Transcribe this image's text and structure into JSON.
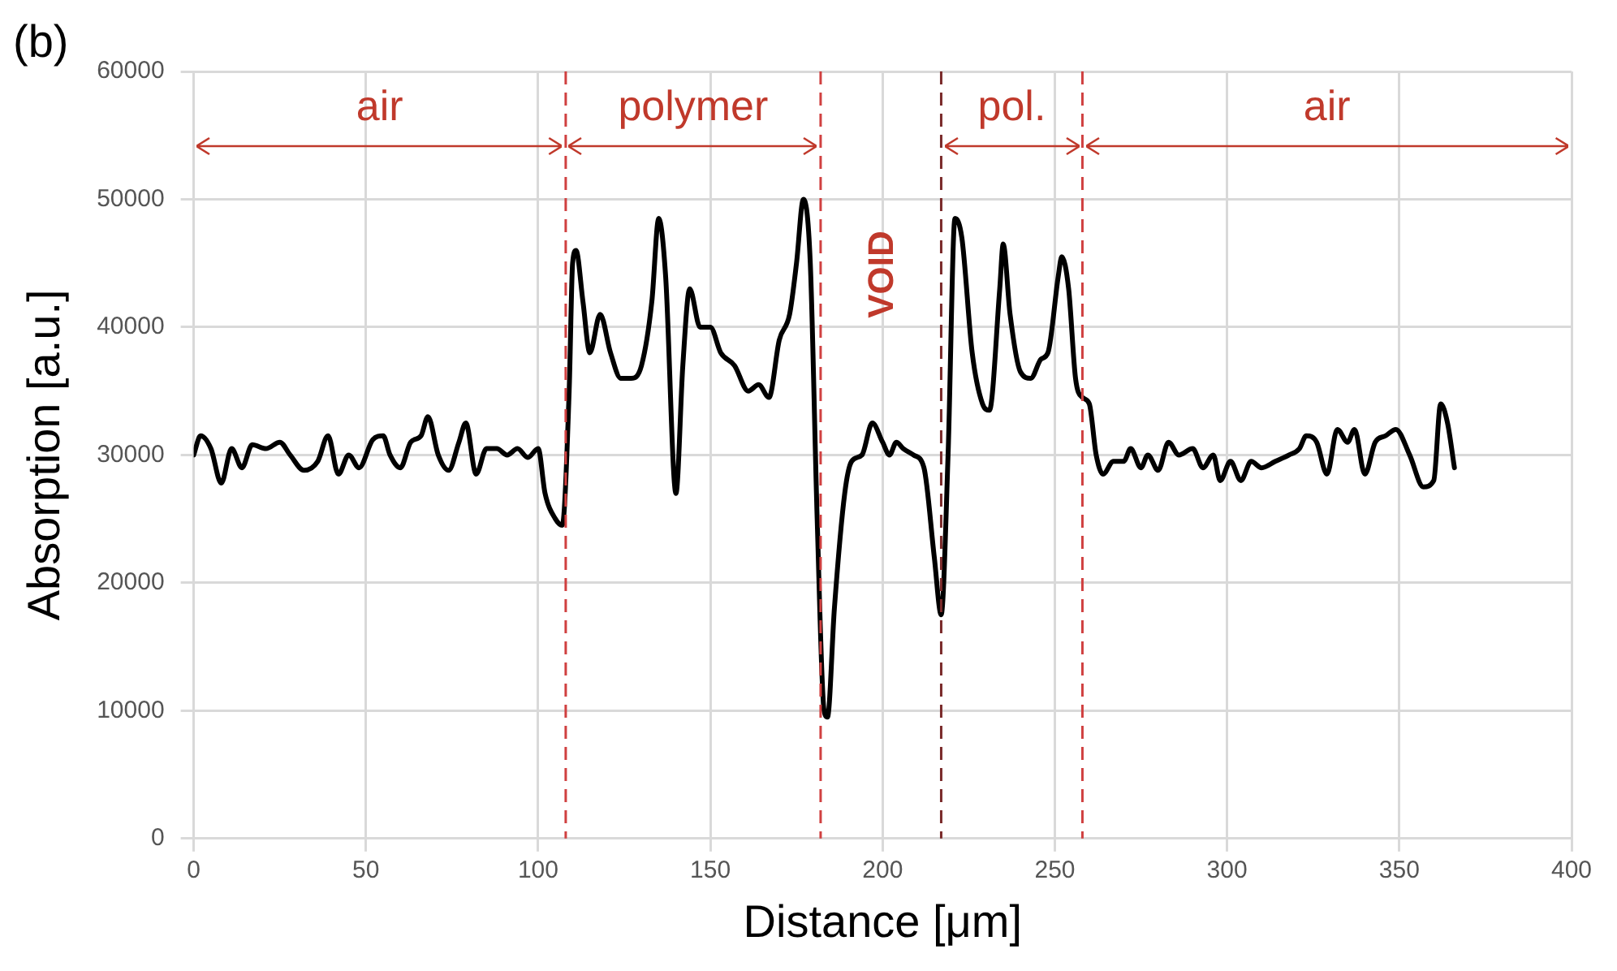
{
  "chart_data": {
    "type": "line",
    "xlabel": "Distance [μm]",
    "ylabel": "Absorption [a.u.]",
    "annotations": [
      "(b)",
      "air",
      "polymer",
      "VOID",
      "pol.",
      "air"
    ],
    "series": [
      {
        "color": "#000000",
        "x": [
          0,
          2,
          5,
          8,
          11,
          14,
          17,
          21,
          25,
          28,
          32,
          36,
          39,
          42,
          45,
          48,
          52,
          55,
          57,
          60,
          63,
          66,
          68,
          71,
          74,
          77,
          79,
          82,
          85,
          88,
          91,
          94,
          97,
          100,
          102,
          105,
          107,
          109,
          110,
          111,
          113,
          115,
          118,
          121,
          124,
          127,
          130,
          133,
          135,
          137,
          140,
          142,
          144,
          147,
          150,
          153,
          157,
          161,
          164,
          167,
          170,
          173,
          175,
          177,
          179,
          181,
          183,
          184,
          186,
          189,
          191,
          194,
          197,
          200,
          202,
          204,
          206,
          209,
          212,
          215,
          217,
          219,
          221,
          223,
          226,
          229,
          231,
          234,
          235,
          237,
          240,
          243,
          246,
          248,
          251,
          252,
          254,
          256,
          258,
          260,
          262,
          264,
          267,
          270,
          272,
          275,
          277,
          280,
          283,
          286,
          290,
          293,
          296,
          298,
          301,
          304,
          307,
          310,
          314,
          318,
          321,
          323,
          326,
          329,
          332,
          335,
          337,
          340,
          343,
          346,
          349,
          353,
          357,
          360,
          362,
          364,
          366
        ],
        "values": [
          30000,
          31500,
          30500,
          27800,
          30500,
          29000,
          30800,
          30500,
          31000,
          30000,
          28800,
          29500,
          31500,
          28500,
          30000,
          29000,
          31200,
          31500,
          30000,
          29000,
          31000,
          31500,
          33000,
          30000,
          28800,
          31000,
          32500,
          28500,
          30500,
          30500,
          30000,
          30500,
          29800,
          30500,
          27000,
          25000,
          24500,
          35000,
          45000,
          46000,
          42000,
          38000,
          41000,
          38000,
          36000,
          36000,
          37000,
          42000,
          48500,
          44000,
          27000,
          37000,
          43000,
          40000,
          40000,
          38000,
          37000,
          35000,
          35500,
          34500,
          39000,
          41000,
          45000,
          50000,
          45000,
          25000,
          10000,
          9500,
          18000,
          27000,
          29500,
          30000,
          32500,
          31000,
          30000,
          31000,
          30500,
          30000,
          29000,
          22000,
          17500,
          30000,
          48500,
          47000,
          38000,
          34000,
          33500,
          43000,
          46500,
          41000,
          36500,
          36000,
          37500,
          38000,
          44000,
          45500,
          43000,
          36000,
          34500,
          34000,
          30000,
          28500,
          29500,
          29500,
          30500,
          29000,
          30000,
          28800,
          31000,
          30000,
          30500,
          29000,
          30000,
          28000,
          29500,
          28000,
          29500,
          29000,
          29500,
          30000,
          30500,
          31500,
          31000,
          28500,
          32000,
          31000,
          32000,
          28500,
          31000,
          31500,
          32000,
          30000,
          27500,
          28000,
          34000,
          32500,
          29000
        ]
      }
    ],
    "xlim": [
      0,
      400
    ],
    "xticks": [
      0,
      50,
      100,
      150,
      200,
      250,
      300,
      350,
      400
    ],
    "ylim": [
      0,
      60000
    ],
    "yticks": [
      0,
      10000,
      20000,
      30000,
      40000,
      50000,
      60000
    ],
    "grid": true,
    "marker": "none",
    "line_style": "solid",
    "ref_lines": [
      {
        "axis": "x",
        "value": 108,
        "color": "#d04040",
        "line_style": "dashed"
      },
      {
        "axis": "x",
        "value": 182,
        "color": "#d04040",
        "line_style": "dashed"
      },
      {
        "axis": "x",
        "value": 217,
        "color": "#7a2a2a",
        "line_style": "dashed"
      },
      {
        "axis": "x",
        "value": 258,
        "color": "#d04040",
        "line_style": "dashed"
      }
    ]
  }
}
